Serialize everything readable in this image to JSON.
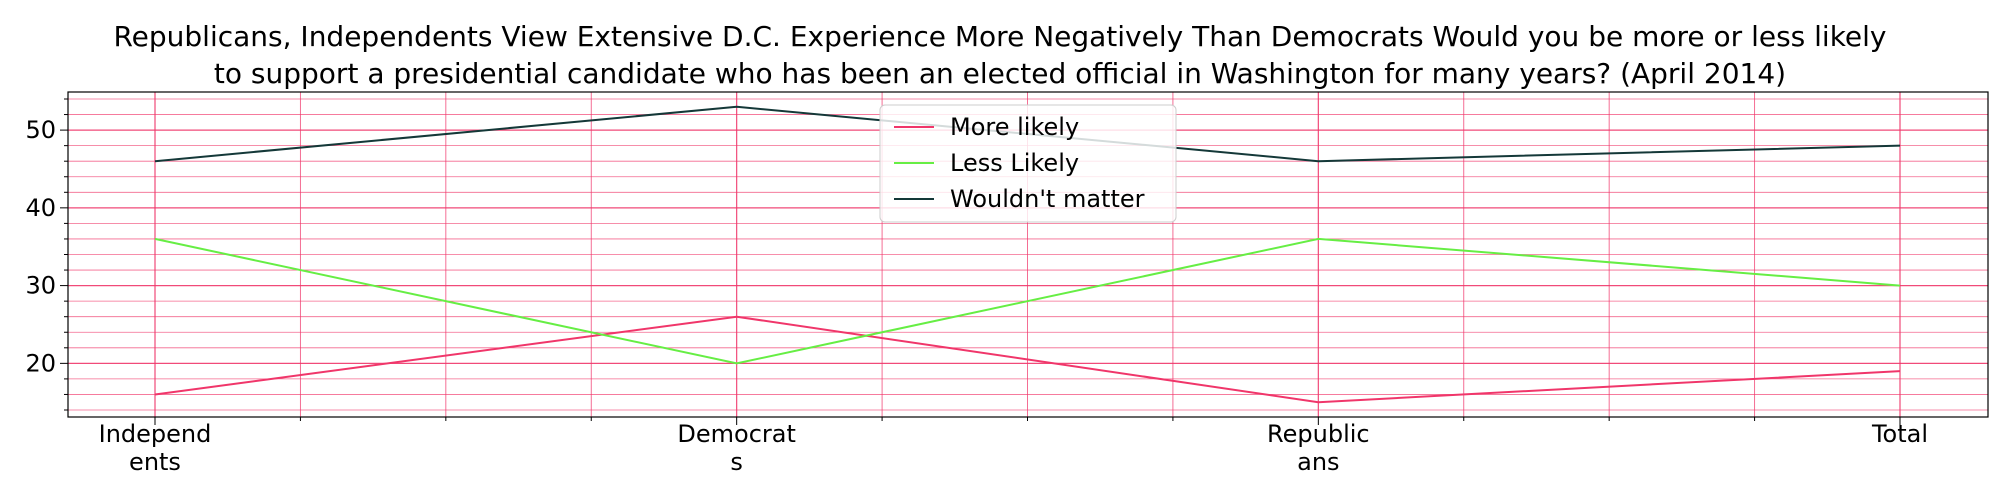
{
  "title_lines": [
    "Republicans, Independents View Extensive D.C. Experience More Negatively Than Democrats Would you be more or less likely",
    "to support a presidential candidate who has been an elected official in Washington for many years? (April 2014)"
  ],
  "chart_data": {
    "type": "line",
    "categories": [
      "Independents",
      "Democrats",
      "Republicans",
      "Total"
    ],
    "category_tick_labels": [
      [
        "Independ",
        "ents"
      ],
      [
        "Democrat",
        "s"
      ],
      [
        "Republic",
        "ans"
      ],
      [
        "Total"
      ]
    ],
    "series": [
      {
        "name": "More likely",
        "values": [
          16,
          26,
          15,
          19
        ],
        "color": "#f0366a"
      },
      {
        "name": "Less Likely",
        "values": [
          36,
          20,
          36,
          30
        ],
        "color": "#66ee44"
      },
      {
        "name": "Wouldn't matter",
        "values": [
          46,
          53,
          46,
          48
        ],
        "color": "#143838"
      }
    ],
    "xlabel": "",
    "ylabel": "",
    "ylim": [
      13.1,
      54.9
    ],
    "y_ticks": [
      20,
      30,
      40,
      50
    ],
    "y_minor_step": 2,
    "grid": true,
    "grid_color": "#f0366a",
    "legend_position": "upper-center"
  }
}
